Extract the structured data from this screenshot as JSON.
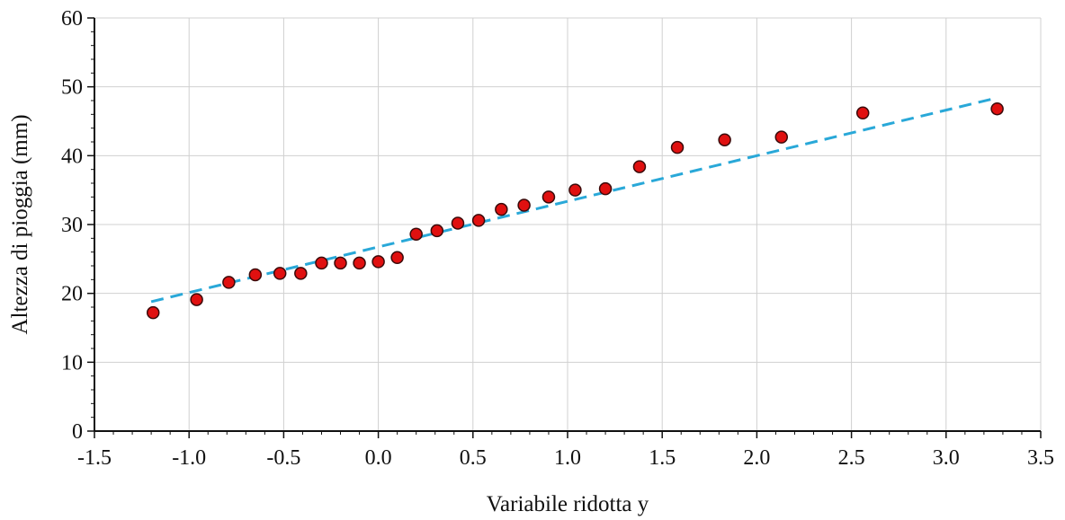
{
  "chart_data": {
    "type": "scatter",
    "title": "",
    "xlabel": "Variabile ridotta y",
    "ylabel": "Altezza di pioggia (mm)",
    "xlim": [
      -1.5,
      3.5
    ],
    "ylim": [
      0,
      60
    ],
    "x_ticks": [
      -1.5,
      -1.0,
      -0.5,
      0.0,
      0.5,
      1.0,
      1.5,
      2.0,
      2.5,
      3.0,
      3.5
    ],
    "x_tick_labels": [
      "-1.5",
      "-1.0",
      "-0.5",
      "0.0",
      "0.5",
      "1.0",
      "1.5",
      "2.0",
      "2.5",
      "3.0",
      "3.5"
    ],
    "y_ticks": [
      0,
      10,
      20,
      30,
      40,
      50,
      60
    ],
    "y_tick_labels": [
      "0",
      "10",
      "20",
      "30",
      "40",
      "50",
      "60"
    ],
    "grid": true,
    "colors": {
      "marker_fill": "#e01010",
      "marker_edge": "#3a0a0a",
      "fit_line": "#29a8d8",
      "grid": "#d0d0d0",
      "axis": "#111111"
    },
    "series": [
      {
        "type": "scatter",
        "points": [
          [
            -1.19,
            17.2
          ],
          [
            -0.96,
            19.1
          ],
          [
            -0.79,
            21.6
          ],
          [
            -0.65,
            22.7
          ],
          [
            -0.52,
            22.9
          ],
          [
            -0.41,
            22.9
          ],
          [
            -0.3,
            24.4
          ],
          [
            -0.2,
            24.4
          ],
          [
            -0.1,
            24.4
          ],
          [
            0.0,
            24.6
          ],
          [
            0.1,
            25.2
          ],
          [
            0.2,
            28.6
          ],
          [
            0.31,
            29.1
          ],
          [
            0.42,
            30.2
          ],
          [
            0.53,
            30.6
          ],
          [
            0.65,
            32.2
          ],
          [
            0.77,
            32.8
          ],
          [
            0.9,
            34.0
          ],
          [
            1.04,
            35.0
          ],
          [
            1.2,
            35.2
          ],
          [
            1.38,
            38.4
          ],
          [
            1.58,
            41.2
          ],
          [
            1.83,
            42.3
          ],
          [
            2.13,
            42.7
          ],
          [
            2.56,
            46.2
          ],
          [
            3.27,
            46.8
          ]
        ]
      },
      {
        "type": "line",
        "style": "dashed",
        "x": [
          -1.2,
          3.27
        ],
        "values": [
          18.8,
          48.4
        ]
      }
    ]
  }
}
